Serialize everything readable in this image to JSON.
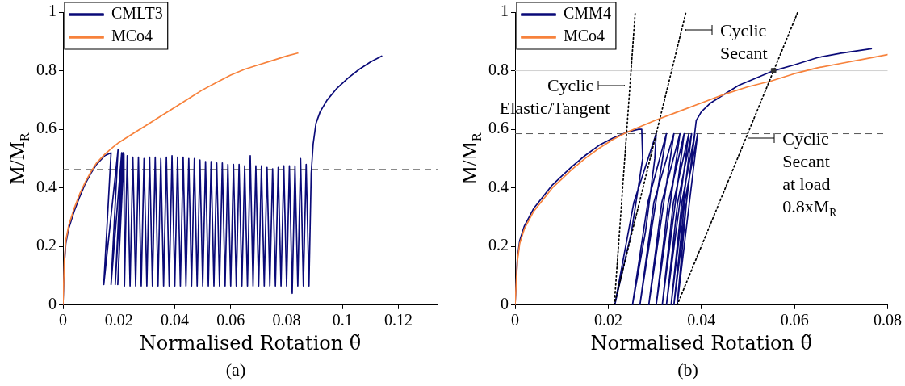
{
  "chart_data": [
    {
      "type": "line",
      "title": "(a)",
      "xlabel": "Normalised Rotation θ̃",
      "ylabel": "M/M$_{R}$",
      "xlim": [
        0,
        0.134
      ],
      "xticks": [
        0,
        0.02,
        0.04,
        0.06,
        0.08,
        0.1,
        0.12
      ],
      "ylim": [
        0,
        1
      ],
      "yticks": [
        0,
        0.2,
        0.4,
        0.6,
        0.8,
        1
      ],
      "grid": false,
      "legend": "top left",
      "marker": "none",
      "line_style": "solid",
      "ref_lines": [
        {
          "axis": "y",
          "value": 0.463,
          "color": "#555555",
          "line_style": "dashed"
        }
      ],
      "series": [
        {
          "name": "CMLT3",
          "color": "#0a0a78",
          "x": [
            0,
            0.0005,
            0.001,
            0.002,
            0.004,
            0.006,
            0.008,
            0.01,
            0.012,
            0.015,
            0.0172,
            0.0146,
            0.0197,
            0.0172,
            0.021,
            0.0187,
            0.0215,
            0.0196,
            0.0218,
            0.022,
            0.023,
            0.024,
            0.025,
            0.026,
            0.027,
            0.028,
            0.029,
            0.03,
            0.031,
            0.032,
            0.033,
            0.034,
            0.035,
            0.036,
            0.037,
            0.038,
            0.039,
            0.04,
            0.041,
            0.042,
            0.043,
            0.044,
            0.045,
            0.046,
            0.047,
            0.048,
            0.049,
            0.05,
            0.051,
            0.052,
            0.053,
            0.054,
            0.055,
            0.056,
            0.057,
            0.058,
            0.059,
            0.06,
            0.061,
            0.062,
            0.063,
            0.064,
            0.065,
            0.066,
            0.067,
            0.068,
            0.069,
            0.07,
            0.071,
            0.072,
            0.073,
            0.074,
            0.075,
            0.076,
            0.077,
            0.078,
            0.079,
            0.08,
            0.081,
            0.082,
            0.083,
            0.084,
            0.085,
            0.086,
            0.087,
            0.088,
            0.0888,
            0.0895,
            0.0905,
            0.092,
            0.0945,
            0.098,
            0.102,
            0.106,
            0.11,
            0.114
          ],
          "values": [
            0,
            0.14,
            0.21,
            0.26,
            0.32,
            0.37,
            0.415,
            0.45,
            0.48,
            0.51,
            0.52,
            0.07,
            0.53,
            0.07,
            0.52,
            0.07,
            0.52,
            0.07,
            0.515,
            0.065,
            0.51,
            0.065,
            0.505,
            0.065,
            0.505,
            0.065,
            0.5,
            0.065,
            0.505,
            0.065,
            0.505,
            0.065,
            0.5,
            0.065,
            0.505,
            0.065,
            0.51,
            0.065,
            0.505,
            0.065,
            0.505,
            0.065,
            0.5,
            0.065,
            0.5,
            0.065,
            0.495,
            0.065,
            0.49,
            0.065,
            0.49,
            0.065,
            0.485,
            0.065,
            0.485,
            0.065,
            0.48,
            0.065,
            0.48,
            0.065,
            0.48,
            0.065,
            0.475,
            0.065,
            0.51,
            0.065,
            0.475,
            0.065,
            0.475,
            0.065,
            0.47,
            0.065,
            0.465,
            0.065,
            0.47,
            0.065,
            0.475,
            0.065,
            0.475,
            0.04,
            0.475,
            0.065,
            0.5,
            0.065,
            0.48,
            0.065,
            0.45,
            0.55,
            0.62,
            0.66,
            0.7,
            0.74,
            0.775,
            0.805,
            0.83,
            0.85
          ]
        },
        {
          "name": "MCo4",
          "color": "#f7823c",
          "x": [
            0,
            0.0005,
            0.001,
            0.002,
            0.004,
            0.006,
            0.008,
            0.01,
            0.012,
            0.015,
            0.018,
            0.02,
            0.025,
            0.03,
            0.035,
            0.04,
            0.045,
            0.05,
            0.055,
            0.06,
            0.065,
            0.07,
            0.075,
            0.08,
            0.084
          ],
          "values": [
            0,
            0.15,
            0.22,
            0.27,
            0.33,
            0.38,
            0.42,
            0.455,
            0.485,
            0.515,
            0.54,
            0.555,
            0.585,
            0.615,
            0.645,
            0.675,
            0.705,
            0.735,
            0.76,
            0.785,
            0.805,
            0.82,
            0.835,
            0.85,
            0.86
          ]
        }
      ]
    },
    {
      "type": "line",
      "title": "(b)",
      "xlabel": "Normalised Rotation θ̃",
      "ylabel": "M/M$_{R}$",
      "xlim": [
        0,
        0.08
      ],
      "xticks": [
        0,
        0.02,
        0.04,
        0.06,
        0.08
      ],
      "ylim": [
        0,
        1
      ],
      "yticks": [
        0,
        0.2,
        0.4,
        0.6,
        0.8,
        1
      ],
      "grid": false,
      "legend": "top left",
      "marker": "none",
      "line_style": "solid",
      "ref_lines": [
        {
          "axis": "y",
          "value": 0.585,
          "color": "#555555",
          "line_style": "dashed"
        },
        {
          "axis": "y",
          "value": 0.8,
          "color": "#d0d0d0",
          "line_style": "solid"
        }
      ],
      "annotations": [
        {
          "text": "Cyclic\nElastic/Tangent",
          "x": 0.0245,
          "y": 0.75
        },
        {
          "text": "Cyclic\nSecant",
          "x": 0.0357,
          "y": 0.94
        },
        {
          "text": "Cyclic\nSecant\nat load\n0.8xM$_{R}$",
          "x": 0.0491,
          "y": 0.57
        }
      ],
      "series": [
        {
          "name": "CMM4",
          "color": "#0a0a78",
          "x": [
            0,
            0.0005,
            0.001,
            0.002,
            0.004,
            0.006,
            0.008,
            0.01,
            0.012,
            0.015,
            0.018,
            0.021,
            0.024,
            0.0265,
            0.0272,
            0.0274,
            0.025,
            0.0214,
            0.0255,
            0.0303,
            0.03,
            0.028,
            0.0252,
            0.0285,
            0.0325,
            0.0268,
            0.0298,
            0.0341,
            0.0287,
            0.0315,
            0.0354,
            0.0303,
            0.0329,
            0.0363,
            0.0316,
            0.034,
            0.0373,
            0.0325,
            0.0349,
            0.0379,
            0.0335,
            0.0358,
            0.0386,
            0.0341,
            0.0364,
            0.0392,
            0.0348,
            0.0368,
            0.0389,
            0.04,
            0.042,
            0.045,
            0.048,
            0.051,
            0.0555,
            0.06,
            0.065,
            0.07,
            0.0765
          ],
          "values": [
            0,
            0.16,
            0.22,
            0.27,
            0.33,
            0.37,
            0.41,
            0.44,
            0.47,
            0.51,
            0.545,
            0.57,
            0.59,
            0.6,
            0.6,
            0.5,
            0.25,
            0,
            0.35,
            0.585,
            0.5,
            0.25,
            0,
            0.35,
            0.585,
            0,
            0.35,
            0.585,
            0,
            0.35,
            0.585,
            0,
            0.35,
            0.585,
            0,
            0.35,
            0.585,
            0,
            0.35,
            0.585,
            0,
            0.35,
            0.585,
            0,
            0.35,
            0.585,
            0,
            0.35,
            0.63,
            0.66,
            0.69,
            0.72,
            0.75,
            0.77,
            0.8,
            0.82,
            0.845,
            0.86,
            0.875
          ]
        },
        {
          "name": "MCo4",
          "color": "#f7823c",
          "x": [
            0,
            0.0005,
            0.001,
            0.002,
            0.004,
            0.006,
            0.008,
            0.01,
            0.012,
            0.015,
            0.018,
            0.021,
            0.024,
            0.027,
            0.03,
            0.035,
            0.04,
            0.045,
            0.05,
            0.055,
            0.06,
            0.065,
            0.07,
            0.075,
            0.08
          ],
          "values": [
            0,
            0.15,
            0.21,
            0.26,
            0.32,
            0.36,
            0.4,
            0.43,
            0.46,
            0.5,
            0.535,
            0.565,
            0.59,
            0.61,
            0.63,
            0.66,
            0.69,
            0.72,
            0.745,
            0.765,
            0.79,
            0.81,
            0.825,
            0.84,
            0.855
          ]
        },
        {
          "color": "#000000",
          "line_style": "dotted",
          "x": [
            0.0213,
            0.0258
          ],
          "values": [
            0,
            1
          ]
        },
        {
          "color": "#000000",
          "line_style": "dotted",
          "x": [
            0.0213,
            0.0367
          ],
          "values": [
            0,
            1
          ]
        },
        {
          "color": "#000000",
          "line_style": "dotted",
          "x": [
            0.0348,
            0.0607
          ],
          "values": [
            0,
            1
          ]
        },
        {
          "type": "scatter",
          "color": "#333333",
          "marker": "square",
          "x": [
            0.0555
          ],
          "values": [
            0.8
          ]
        }
      ]
    }
  ]
}
